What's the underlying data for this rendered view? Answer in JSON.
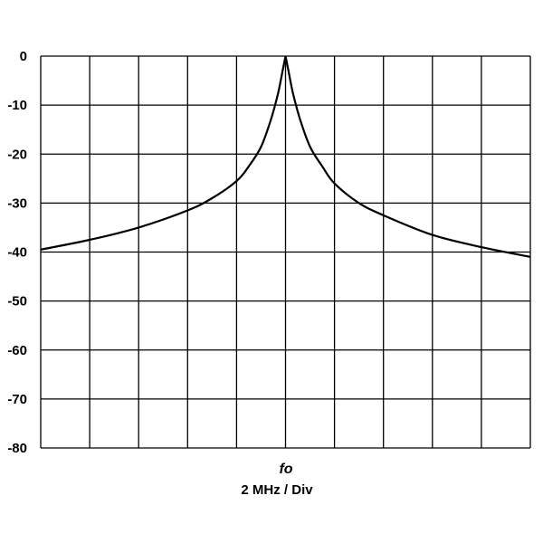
{
  "chart_data": {
    "type": "line",
    "title": "",
    "xlabel_center": "fo",
    "xlabel_scale": "2 MHz / Div",
    "ylabel": "",
    "ylim": [
      -80,
      0
    ],
    "yticks": [
      "0",
      "-10",
      "-20",
      "-30",
      "-40",
      "-50",
      "-60",
      "-70",
      "-80"
    ],
    "xlim_div": [
      -5,
      5
    ],
    "grid": true,
    "line_color": "#000000",
    "series": [
      {
        "x": [
          -5,
          -4,
          -3,
          -2,
          -1.5,
          -1,
          -0.75,
          -0.5,
          -0.3,
          -0.15,
          -0.05,
          0,
          0.05,
          0.15,
          0.3,
          0.5,
          0.75,
          1,
          1.5,
          2,
          3,
          4,
          5
        ],
        "y": [
          -39.5,
          -37.5,
          -35,
          -31.5,
          -29,
          -25.5,
          -22.5,
          -18.5,
          -13,
          -7.5,
          -2.5,
          0,
          -2.5,
          -7.5,
          -13,
          -18.5,
          -22.5,
          -26,
          -30,
          -32.5,
          -36.5,
          -39,
          -41
        ]
      }
    ]
  }
}
